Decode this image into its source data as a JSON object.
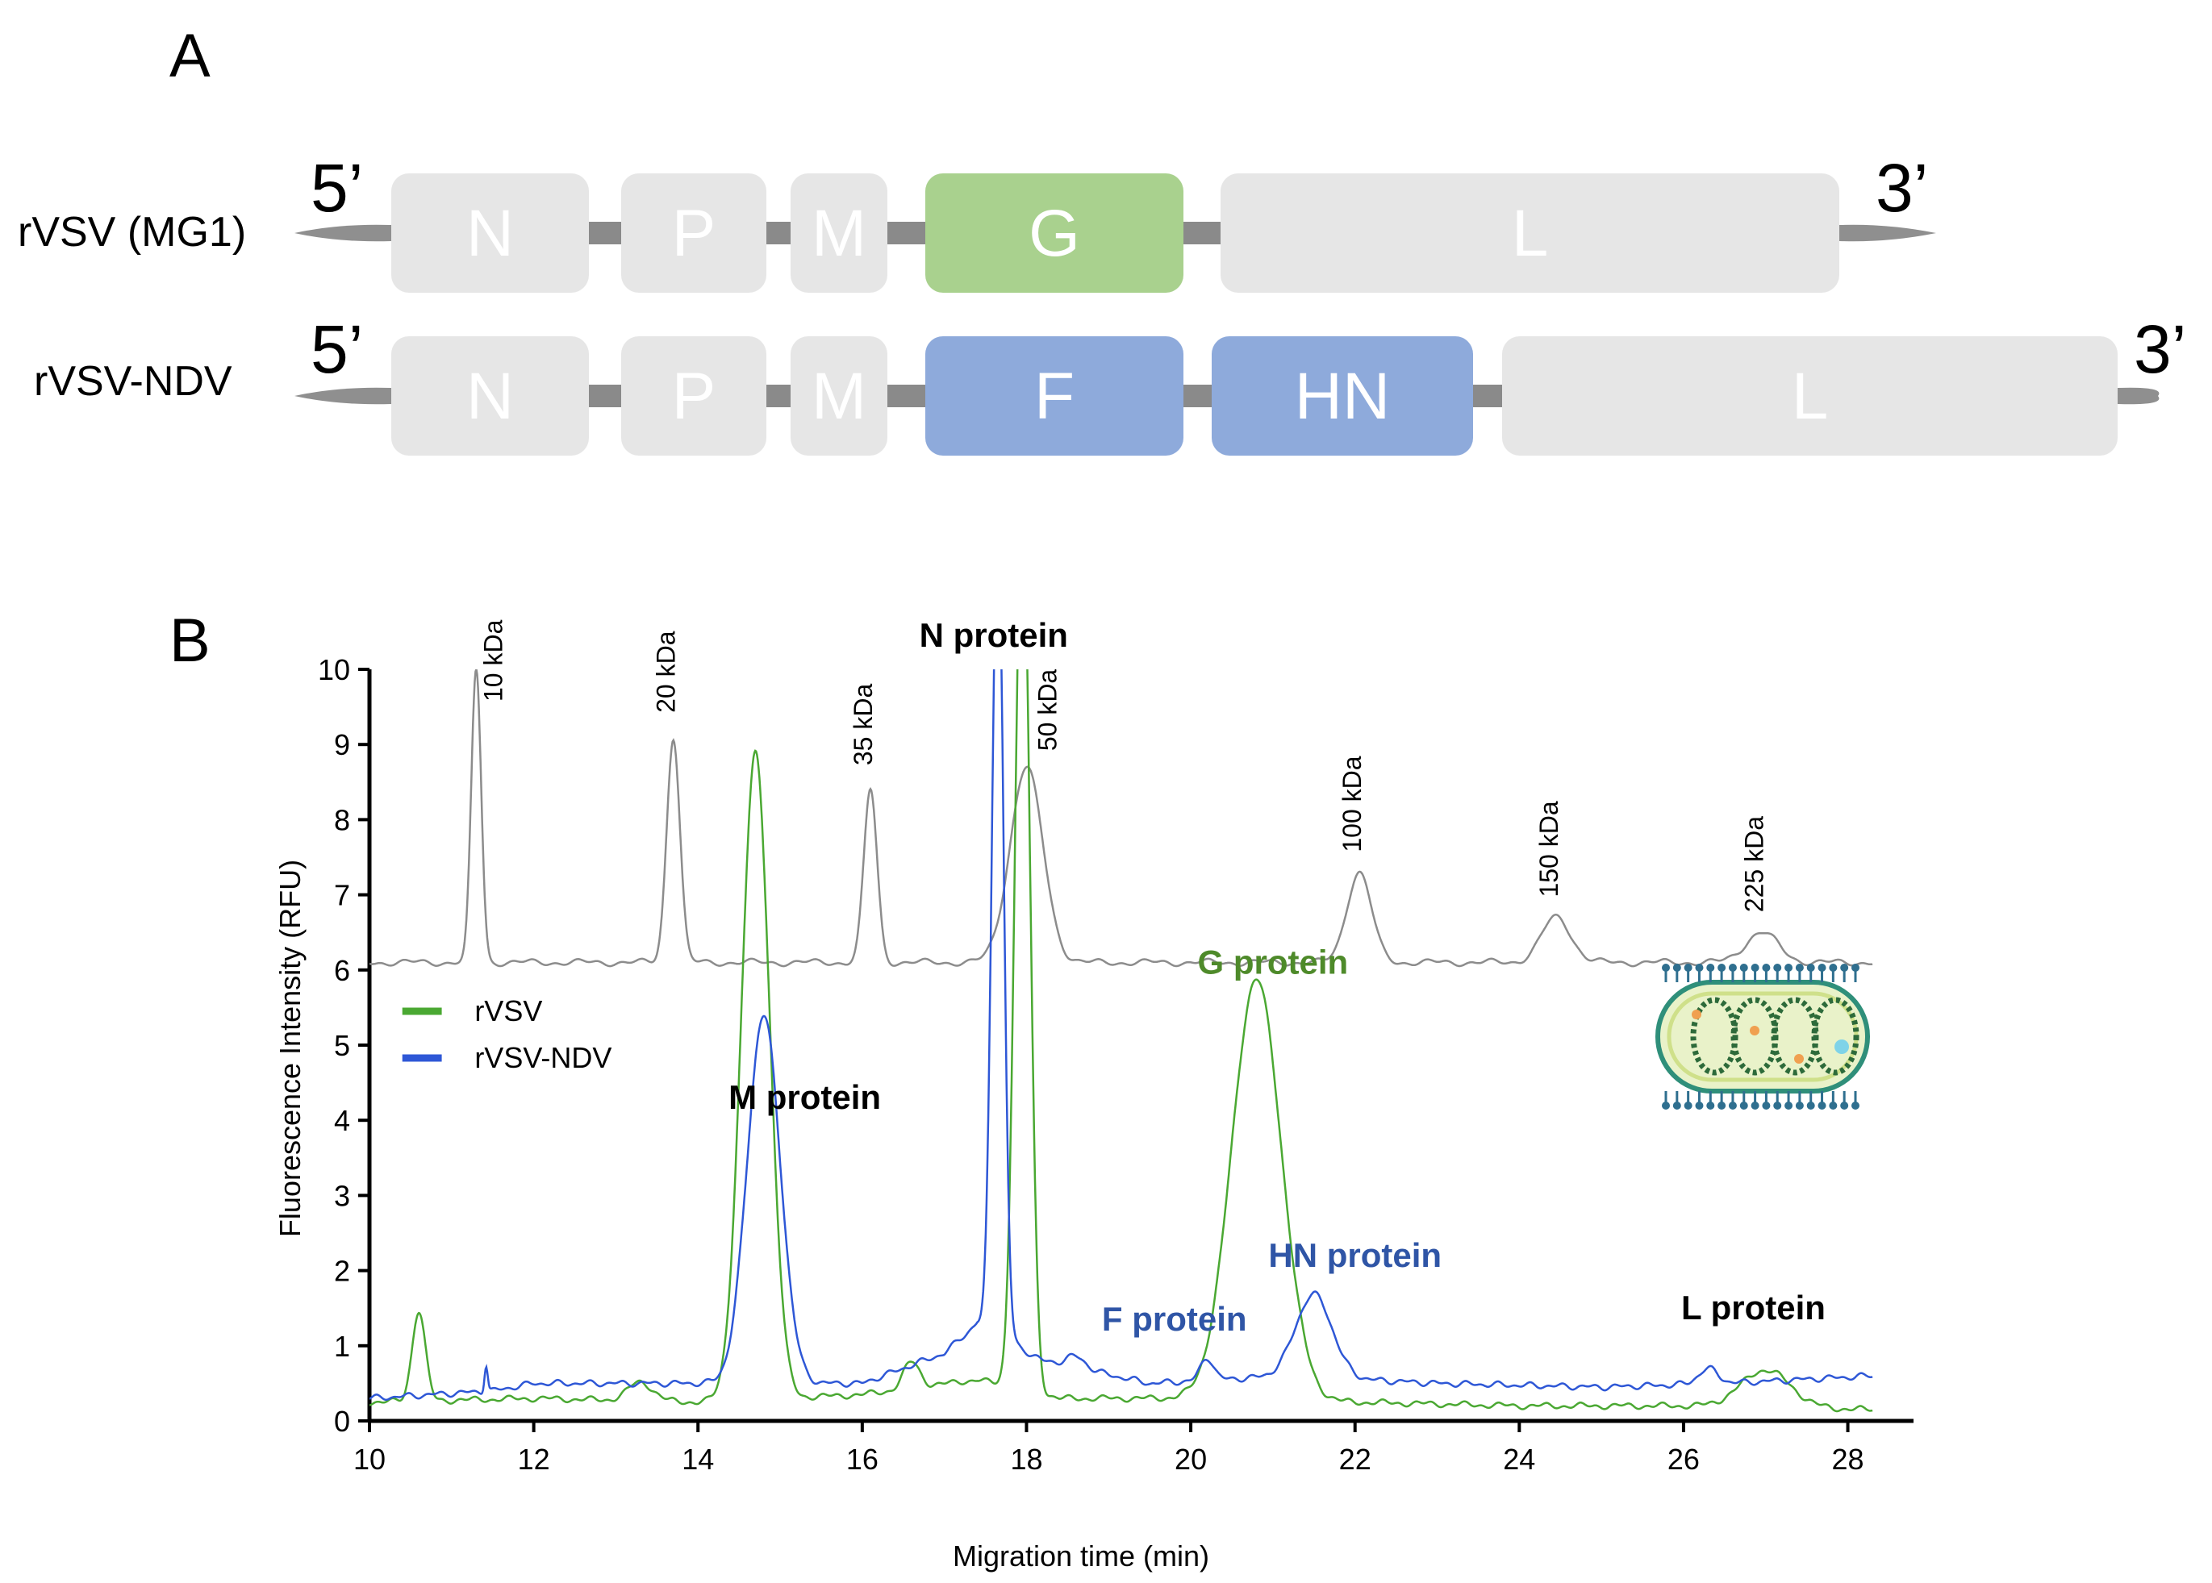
{
  "panel_a": {
    "label": "A",
    "five_prime": "5’",
    "three_prime": "3’",
    "constructs": [
      {
        "name": "rVSV (MG1)",
        "genes": [
          {
            "label": "N",
            "color": "#e6e6e6"
          },
          {
            "label": "P",
            "color": "#e6e6e6"
          },
          {
            "label": "M",
            "color": "#e6e6e6"
          },
          {
            "label": "G",
            "color": "#a9d18e"
          },
          {
            "label": "L",
            "color": "#e6e6e6"
          }
        ]
      },
      {
        "name": "rVSV-NDV",
        "genes": [
          {
            "label": "N",
            "color": "#e6e6e6"
          },
          {
            "label": "P",
            "color": "#e6e6e6"
          },
          {
            "label": "M",
            "color": "#e6e6e6"
          },
          {
            "label": "F",
            "color": "#8eaadb"
          },
          {
            "label": "HN",
            "color": "#8eaadb"
          },
          {
            "label": "L",
            "color": "#e6e6e6"
          }
        ]
      }
    ]
  },
  "panel_b": {
    "label": "B"
  },
  "chart_data": {
    "type": "line",
    "xlabel": "Migration time (min)",
    "ylabel": "Fluorescence Intensity (RFU)",
    "xlim": [
      10,
      28.8
    ],
    "ylim": [
      0,
      10
    ],
    "xticks": [
      10,
      12,
      14,
      16,
      18,
      20,
      22,
      24,
      26,
      28
    ],
    "yticks": [
      0,
      1,
      2,
      3,
      4,
      5,
      6,
      7,
      8,
      9,
      10
    ],
    "legend": {
      "placement": "left-middle",
      "entries": [
        {
          "name": "rVSV",
          "color": "#4aa832"
        },
        {
          "name": "rVSV-NDV",
          "color": "#2e57d6"
        }
      ]
    },
    "ladder": {
      "color": "#8c8c8c",
      "baseline": 6.1,
      "markers": [
        {
          "label": "10 kDa",
          "x": 11.3,
          "y": 10.0
        },
        {
          "label": "20 kDa",
          "x": 13.7,
          "y": 9.1
        },
        {
          "label": "35 kDa",
          "x": 16.1,
          "y": 8.4
        },
        {
          "label": "50 kDa",
          "x": 18.0,
          "y": 8.7
        },
        {
          "label": "100 kDa",
          "x": 22.05,
          "y": 7.3
        },
        {
          "label": "150 kDa",
          "x": 24.45,
          "y": 6.7
        },
        {
          "label": "225 kDa",
          "x": 26.95,
          "y": 6.5
        }
      ]
    },
    "series": [
      {
        "name": "rVSV",
        "color": "#4aa832",
        "baseline": [
          [
            10,
            0.25
          ],
          [
            12,
            0.3
          ],
          [
            14,
            0.25
          ],
          [
            16,
            0.35
          ],
          [
            17.4,
            0.55
          ],
          [
            18.4,
            0.3
          ],
          [
            20,
            0.3
          ],
          [
            22,
            0.25
          ],
          [
            24,
            0.2
          ],
          [
            26,
            0.2
          ],
          [
            28.3,
            0.15
          ]
        ],
        "peaks": [
          {
            "x": 10.6,
            "y": 1.2,
            "w": 0.08
          },
          {
            "x": 13.3,
            "y": 0.25,
            "w": 0.15
          },
          {
            "x": 14.7,
            "y": 8.6,
            "w": 0.17
          },
          {
            "x": 16.6,
            "y": 0.35,
            "w": 0.1
          },
          {
            "x": 17.95,
            "y": 12.0,
            "w": 0.09
          },
          {
            "x": 20.8,
            "y": 5.6,
            "w": 0.3
          },
          {
            "x": 27.0,
            "y": 0.5,
            "w": 0.3
          }
        ]
      },
      {
        "name": "rVSV-NDV",
        "color": "#2e57d6",
        "baseline": [
          [
            10,
            0.3
          ],
          [
            11.5,
            0.4
          ],
          [
            12,
            0.5
          ],
          [
            14,
            0.5
          ],
          [
            16,
            0.5
          ],
          [
            17.0,
            0.9
          ],
          [
            17.4,
            1.3
          ],
          [
            18.2,
            0.8
          ],
          [
            19.5,
            0.5
          ],
          [
            21.2,
            0.6
          ],
          [
            23,
            0.5
          ],
          [
            25,
            0.45
          ],
          [
            26.5,
            0.5
          ],
          [
            28.3,
            0.6
          ]
        ],
        "peaks": [
          {
            "x": 11.42,
            "y": 0.35,
            "w": 0.02
          },
          {
            "x": 14.8,
            "y": 4.9,
            "w": 0.2
          },
          {
            "x": 17.65,
            "y": 11.0,
            "w": 0.07
          },
          {
            "x": 18.6,
            "y": 0.15,
            "w": 0.12
          },
          {
            "x": 20.2,
            "y": 0.3,
            "w": 0.08
          },
          {
            "x": 21.5,
            "y": 1.1,
            "w": 0.22
          },
          {
            "x": 26.3,
            "y": 0.2,
            "w": 0.12
          }
        ]
      }
    ],
    "annotations": [
      {
        "text": "N protein",
        "x": 17.6,
        "y": 10.3,
        "color": "#000000"
      },
      {
        "text": "M protein",
        "x": 15.3,
        "y": 4.15,
        "color": "#000000"
      },
      {
        "text": "G protein",
        "x": 21.0,
        "y": 5.95,
        "color": "#4e8a2a"
      },
      {
        "text": "HN protein",
        "x": 22.0,
        "y": 2.05,
        "color": "#2f55a6"
      },
      {
        "text": "F protein",
        "x": 19.8,
        "y": 1.2,
        "color": "#2f55a6"
      },
      {
        "text": "L protein",
        "x": 26.85,
        "y": 1.35,
        "color": "#000000"
      }
    ]
  }
}
